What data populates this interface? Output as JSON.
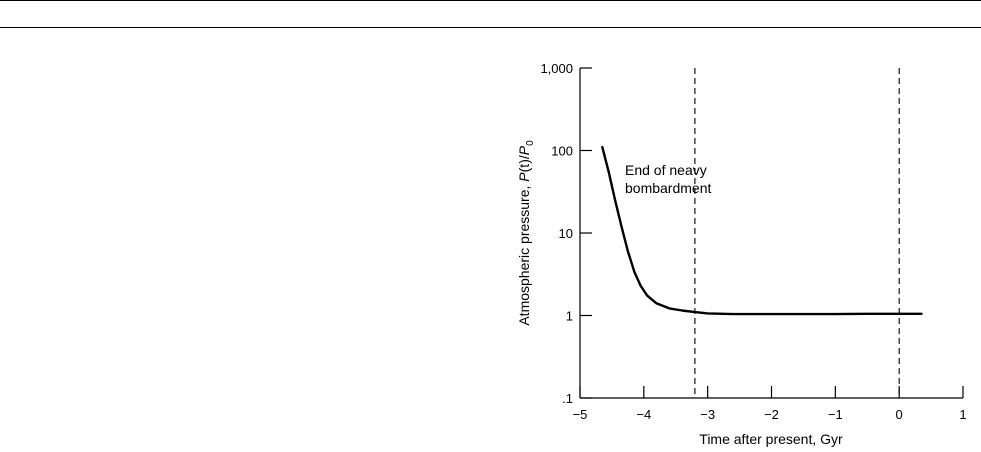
{
  "chart_data": {
    "type": "line",
    "xlabel": "Time after present, Gyr",
    "ylabel_main": "Atmospheric pressure, ",
    "ylabel_var": "P",
    "ylabel_paren": "(t)/",
    "ylabel_denom_var": "P",
    "ylabel_denom_sub": "0",
    "xlim": [
      -5,
      1
    ],
    "ylim": [
      0.1,
      1000
    ],
    "yscale": "log",
    "grid": false,
    "xticks": [
      -5,
      -4,
      -3,
      -2,
      -1,
      0,
      1
    ],
    "xtick_labels": [
      "−5",
      "−4",
      "−3",
      "−2",
      "−1",
      "0",
      "1"
    ],
    "yticks": [
      0.1,
      1,
      10,
      100,
      1000
    ],
    "ytick_labels": [
      ".1",
      "1",
      "10",
      "100",
      "1,000"
    ],
    "vlines": [
      -3.2,
      0
    ],
    "annotation": [
      "End of neavy",
      "bombardment"
    ],
    "series": [
      {
        "x": [
          -4.65,
          -4.55,
          -4.45,
          -4.35,
          -4.25,
          -4.15,
          -4.05,
          -3.95,
          -3.8,
          -3.6,
          -3.4,
          -3.2,
          -3.0,
          -2.6,
          -2.2,
          -1.5,
          -1.0,
          -0.5,
          0,
          0.35
        ],
        "y": [
          110,
          55,
          25,
          12,
          6,
          3.4,
          2.3,
          1.75,
          1.4,
          1.22,
          1.15,
          1.1,
          1.06,
          1.04,
          1.04,
          1.04,
          1.04,
          1.05,
          1.05,
          1.05
        ]
      }
    ]
  }
}
